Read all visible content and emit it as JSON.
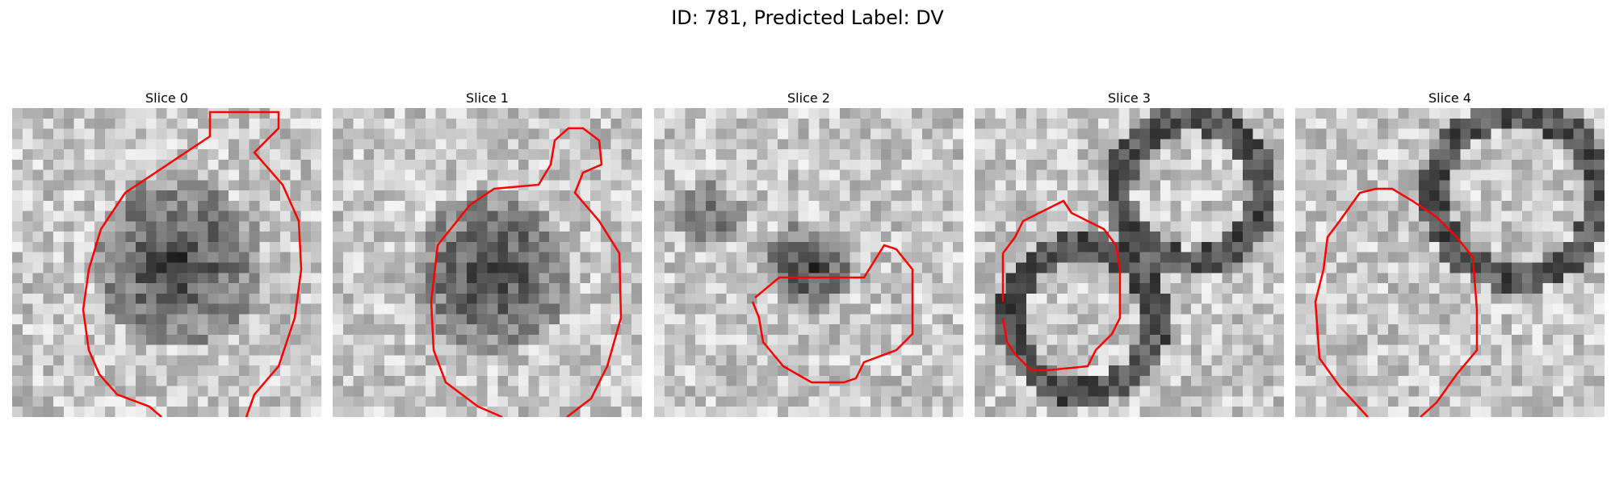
{
  "figure": {
    "title": "ID: 781, Predicted Label: DV"
  },
  "slices": [
    {
      "title": "Slice 0"
    },
    {
      "title": "Slice 1"
    },
    {
      "title": "Slice 2"
    },
    {
      "title": "Slice 3"
    },
    {
      "title": "Slice 4"
    }
  ],
  "colors": {
    "contour": "#ff0000",
    "background": "#ffffff"
  }
}
